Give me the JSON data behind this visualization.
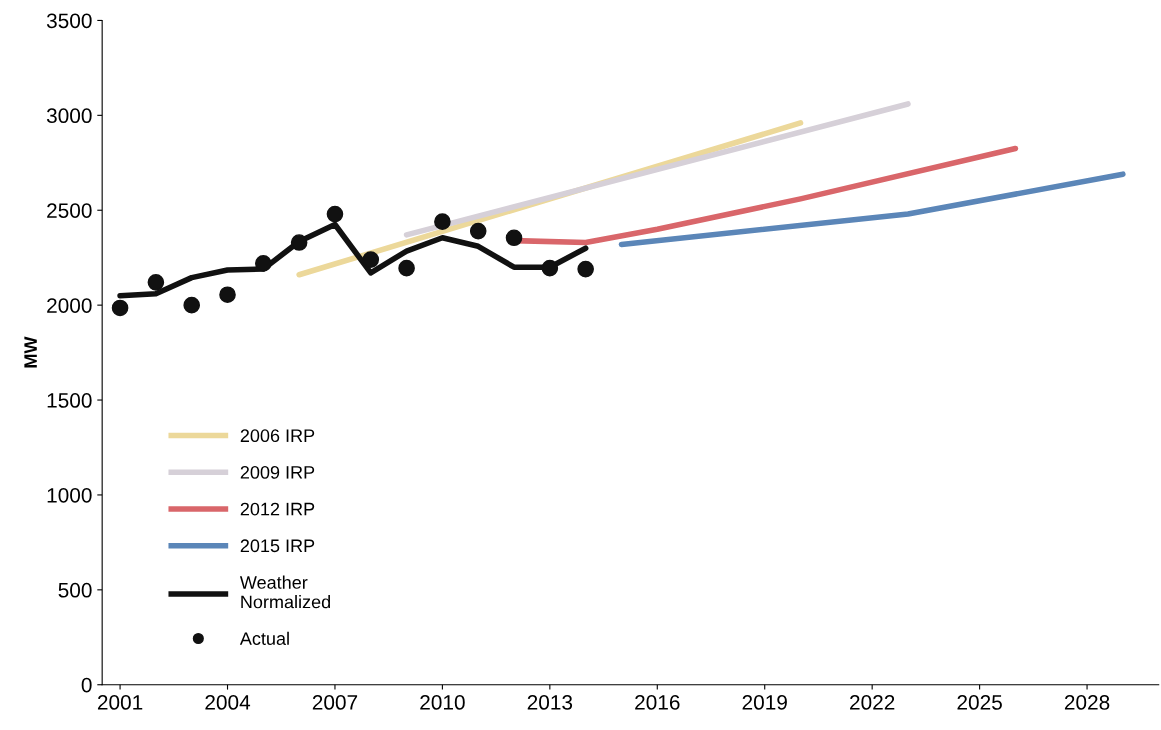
{
  "chart_data": {
    "type": "line",
    "ylabel": "MW",
    "xlim": [
      2000.5,
      2030
    ],
    "xticks": [
      2001,
      2004,
      2007,
      2010,
      2013,
      2016,
      2019,
      2022,
      2025,
      2028
    ],
    "ylim": [
      0,
      3500
    ],
    "yticks": [
      0,
      500,
      1000,
      1500,
      2000,
      2500,
      3000,
      3500
    ],
    "grid": false,
    "legend": "bottom left",
    "series": [
      {
        "name": "2006 IRP",
        "color": "#ecd89a",
        "x": [
          2006,
          2020
        ],
        "values": [
          2160,
          2960
        ]
      },
      {
        "name": "2009 IRP",
        "color": "#d6d0d8",
        "x": [
          2009,
          2023
        ],
        "values": [
          2370,
          3060
        ]
      },
      {
        "name": "2012 IRP",
        "color": "#d9666a",
        "x": [
          2012,
          2014,
          2016,
          2020,
          2026
        ],
        "values": [
          2340,
          2330,
          2400,
          2560,
          2825
        ]
      },
      {
        "name": "2015 IRP",
        "color": "#5b86b8",
        "x": [
          2015,
          2023,
          2029
        ],
        "values": [
          2320,
          2480,
          2690
        ]
      },
      {
        "name": "Weather\nNormalized",
        "color": "#111111",
        "x": [
          2001,
          2002,
          2003,
          2004,
          2005,
          2006,
          2007,
          2008,
          2009,
          2010,
          2011,
          2012,
          2013,
          2014
        ],
        "values": [
          2050,
          2060,
          2145,
          2185,
          2190,
          2335,
          2425,
          2170,
          2285,
          2355,
          2310,
          2200,
          2200,
          2300
        ]
      },
      {
        "name": "Actual",
        "type": "scatter",
        "marker": "circle",
        "color": "#111111",
        "x": [
          2001,
          2002,
          2003,
          2004,
          2005,
          2006,
          2007,
          2008,
          2009,
          2010,
          2011,
          2012,
          2013,
          2014
        ],
        "values": [
          1985,
          2120,
          2000,
          2055,
          2220,
          2330,
          2480,
          2240,
          2195,
          2440,
          2390,
          2355,
          2195,
          2190
        ]
      }
    ]
  }
}
